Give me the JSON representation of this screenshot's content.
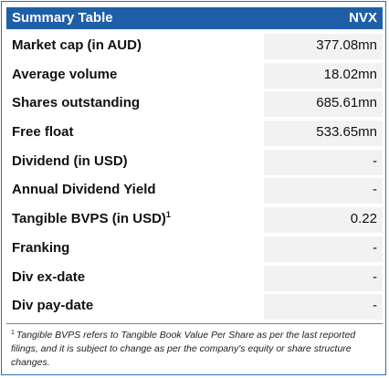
{
  "header": {
    "title": "Summary Table",
    "ticker": "NVX"
  },
  "rows": [
    {
      "label": "Market cap (in AUD)",
      "value": "377.08mn"
    },
    {
      "label": "Average volume",
      "value": "18.02mn"
    },
    {
      "label": "Shares outstanding",
      "value": "685.61mn"
    },
    {
      "label": "Free float",
      "value": "533.65mn"
    },
    {
      "label": "Dividend (in USD)",
      "value": "-"
    },
    {
      "label": "Annual Dividend Yield",
      "value": "-"
    },
    {
      "label": "Tangible BVPS (in USD)",
      "sup": "1",
      "value": "0.22"
    },
    {
      "label": "Franking",
      "value": "-"
    },
    {
      "label": "Div ex-date",
      "value": "-"
    },
    {
      "label": "Div pay-date",
      "value": "-"
    }
  ],
  "footnote": {
    "marker": "1",
    "text": "Tangible BVPS refers to Tangible Book Value Per Share as per the last reported filings, and it is subject to change as per the company's equity or share structure changes."
  }
}
